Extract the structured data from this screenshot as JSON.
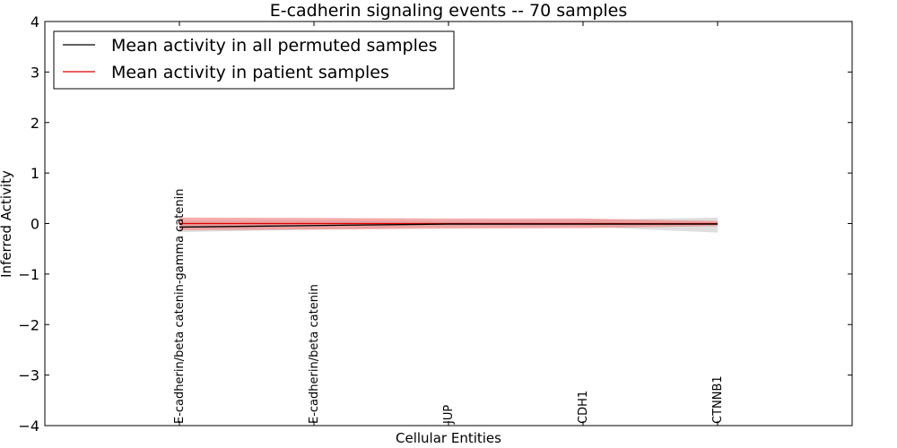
{
  "chart_data": {
    "type": "line",
    "title": "E-cadherin signaling events -- 70 samples",
    "xlabel": "Cellular Entities",
    "ylabel": "Inferred Activity",
    "ylim": [
      -4,
      4
    ],
    "yticks": [
      4,
      3,
      2,
      1,
      0,
      -1,
      -2,
      -3,
      -4
    ],
    "ytick_labels": [
      "4",
      "3",
      "2",
      "1",
      "0",
      "−1",
      "−2",
      "−3",
      "−4"
    ],
    "categories": [
      "E-cadherin/beta catenin-gamma catenin",
      "E-cadherin/beta catenin",
      "JUP",
      "CDH1",
      "CTNNB1"
    ],
    "legend_position": "top-left",
    "series": [
      {
        "name": "Mean activity in all permuted samples",
        "color": "#000000",
        "values": [
          -0.07,
          -0.04,
          -0.01,
          -0.01,
          -0.01
        ],
        "band_low": [
          -0.17,
          -0.12,
          -0.06,
          -0.06,
          -0.18
        ],
        "band_high": [
          0.05,
          0.06,
          0.05,
          0.07,
          0.12
        ],
        "band_color": "#c8c8c8"
      },
      {
        "name": "Mean activity in patient samples",
        "color": "#e00000",
        "values": [
          0.0,
          0.0,
          0.0,
          0.0,
          0.0
        ],
        "band_low": [
          -0.13,
          -0.12,
          -0.1,
          -0.09,
          -0.05
        ],
        "band_high": [
          0.12,
          0.11,
          0.1,
          0.1,
          0.05
        ],
        "band_color": "#f08080"
      }
    ]
  }
}
